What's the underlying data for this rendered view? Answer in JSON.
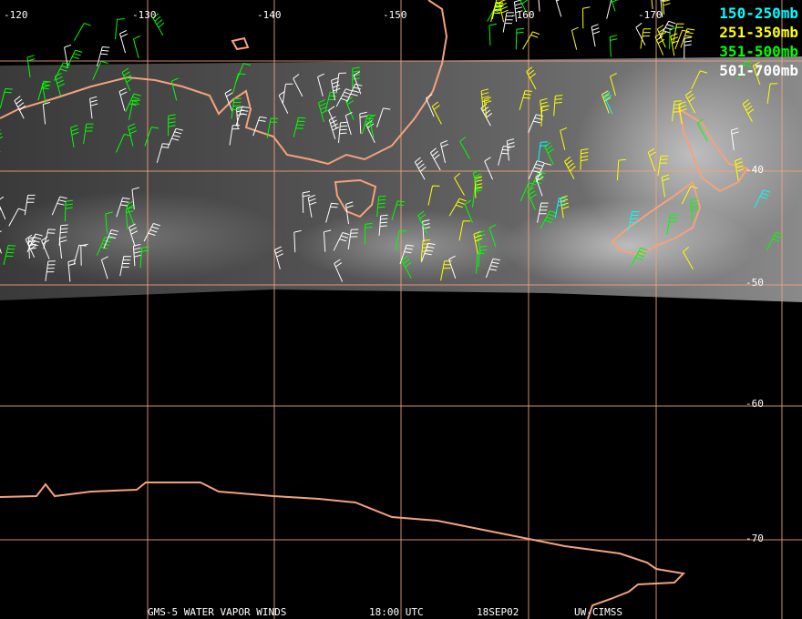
{
  "map": {
    "longitude_labels": [
      "-120",
      "-130",
      "-140",
      "-150",
      "-160",
      "-170"
    ],
    "latitude_labels": [
      "-40",
      "-50",
      "-60",
      "-70"
    ],
    "legend": [
      {
        "label": "150-250mb",
        "color": "#00ffff"
      },
      {
        "label": "251-350mb",
        "color": "#ffff00"
      },
      {
        "label": "351-500mb",
        "color": "#00ff00"
      },
      {
        "label": "501-700mb",
        "color": "#ffffff"
      }
    ],
    "footer": [
      "GMS-5 WATER VAPOR WINDS",
      "18:00 UTC",
      "18SEP02",
      "UW-CIMSS"
    ]
  }
}
